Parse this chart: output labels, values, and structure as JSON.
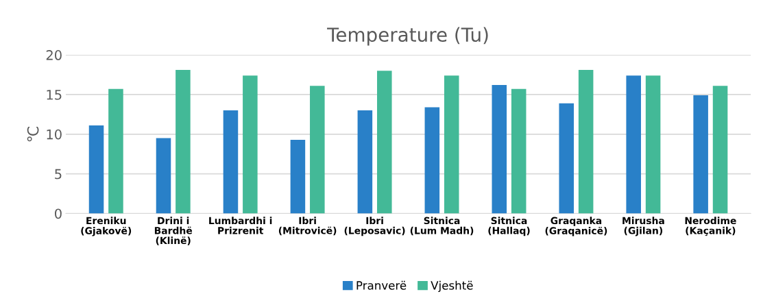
{
  "chart_data": {
    "type": "bar",
    "title": "Temperature (Tu)",
    "ylabel": "℃",
    "categories": [
      "Ereniku\n(Gjakovë)",
      "Drini i\nBardhë\n(Klinë)",
      "Lumbardhi i\nPrizrenit",
      "Ibri\n(Mitrovicë)",
      "Ibri\n(Leposavic)",
      "Sitnica\n(Lum Madh)",
      "Sitnica\n(Hallaq)",
      "Graqanka\n(Graqanicë)",
      "Mirusha\n(Gjilan)",
      "Nerodime\n(Kaçanik)"
    ],
    "series": [
      {
        "name": "Pranverë",
        "color": "#2980c8",
        "values": [
          11.1,
          9.5,
          13.0,
          9.3,
          13.0,
          13.4,
          16.2,
          13.9,
          17.4,
          14.9
        ]
      },
      {
        "name": "Vjeshtë",
        "color": "#43b997",
        "values": [
          15.7,
          18.1,
          17.4,
          16.1,
          18.0,
          17.4,
          15.7,
          18.1,
          17.4,
          16.1
        ]
      }
    ],
    "ylim": [
      0,
      20
    ],
    "yticks": [
      0,
      5,
      10,
      15,
      20
    ],
    "grid": "y",
    "legend": "bottom"
  }
}
